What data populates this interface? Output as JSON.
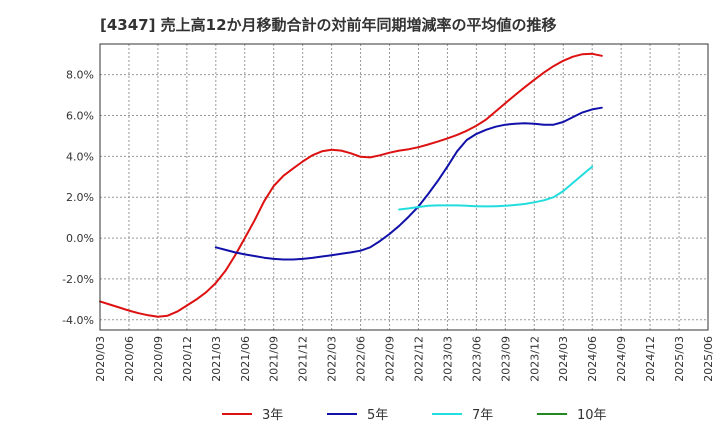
{
  "chart_data": {
    "type": "line",
    "title": "[4347]  売上高12か月移動合計の対前年同期増減率の平均値の推移",
    "xlabel": "",
    "ylabel": "",
    "ylim": [
      -4.5,
      9.5
    ],
    "yticks": [
      {
        "value": 8,
        "label": "8.0%"
      },
      {
        "value": 6,
        "label": "6.0%"
      },
      {
        "value": 4,
        "label": "4.0%"
      },
      {
        "value": 2,
        "label": "2.0%"
      },
      {
        "value": 0,
        "label": "0.0%"
      },
      {
        "value": -2,
        "label": "-2.0%"
      },
      {
        "value": -4,
        "label": "-4.0%"
      }
    ],
    "x_categories": [
      "2020/03",
      "2020/06",
      "2020/09",
      "2020/12",
      "2021/03",
      "2021/06",
      "2021/09",
      "2021/12",
      "2022/03",
      "2022/06",
      "2022/09",
      "2022/12",
      "2023/03",
      "2023/06",
      "2023/09",
      "2023/12",
      "2024/03",
      "2024/06",
      "2024/09",
      "2024/12",
      "2025/03",
      "2025/06"
    ],
    "grid": true,
    "legend_position": "bottom",
    "series": [
      {
        "name": "3年",
        "color": "#dd1111",
        "start_index": 0,
        "values": [
          -3.1,
          -3.25,
          -3.4,
          -3.55,
          -3.68,
          -3.78,
          -3.85,
          -3.8,
          -3.6,
          -3.3,
          -3.0,
          -2.65,
          -2.2,
          -1.6,
          -0.85,
          0.0,
          0.85,
          1.8,
          2.55,
          3.05,
          3.4,
          3.75,
          4.05,
          4.25,
          4.32,
          4.28,
          4.15,
          3.98,
          3.95,
          4.05,
          4.18,
          4.28,
          4.35,
          4.45,
          4.58,
          4.72,
          4.88,
          5.05,
          5.25,
          5.5,
          5.8,
          6.2,
          6.6,
          7.0,
          7.38,
          7.75,
          8.1,
          8.42,
          8.68,
          8.88,
          9.0,
          9.02,
          8.92
        ]
      },
      {
        "name": "5年",
        "color": "#1111aa",
        "start_index": 12,
        "values": [
          -0.45,
          -0.58,
          -0.7,
          -0.8,
          -0.88,
          -0.96,
          -1.02,
          -1.05,
          -1.05,
          -1.02,
          -0.97,
          -0.9,
          -0.84,
          -0.77,
          -0.7,
          -0.62,
          -0.45,
          -0.15,
          0.2,
          0.6,
          1.05,
          1.55,
          2.15,
          2.8,
          3.5,
          4.25,
          4.8,
          5.1,
          5.3,
          5.45,
          5.55,
          5.6,
          5.62,
          5.6,
          5.55,
          5.55,
          5.68,
          5.92,
          6.15,
          6.3,
          6.38
        ]
      },
      {
        "name": "7年",
        "color": "#22dddd",
        "start_index": 31,
        "values": [
          1.4,
          1.45,
          1.52,
          1.58,
          1.6,
          1.6,
          1.6,
          1.58,
          1.56,
          1.55,
          1.56,
          1.58,
          1.62,
          1.67,
          1.75,
          1.85,
          2.0,
          2.3,
          2.7,
          3.1,
          3.5
        ]
      },
      {
        "name": "10年",
        "color": "#228822",
        "start_index": 0,
        "values": []
      }
    ]
  }
}
